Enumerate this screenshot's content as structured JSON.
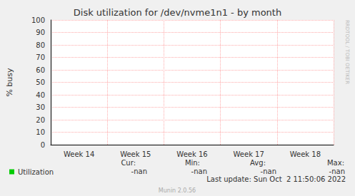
{
  "chart_data": {
    "type": "line",
    "title": "Disk utilization for /dev/nvme1n1 - by month",
    "y_label": "% busy",
    "categories": [
      "Week 14",
      "Week 15",
      "Week 16",
      "Week 17",
      "Week 18"
    ],
    "series": [
      {
        "name": "Utilization",
        "color": "#00cc00",
        "values": [
          null,
          null,
          null,
          null,
          null
        ]
      }
    ],
    "ylim": [
      0,
      100
    ],
    "yticks": [
      0,
      10,
      20,
      30,
      40,
      50,
      60,
      70,
      80,
      90,
      100
    ],
    "grid": true,
    "legend": "bottom-left",
    "annotations": {
      "stats_headers": [
        "Cur:",
        "Min:",
        "Avg:",
        "Max:"
      ],
      "stats_values": [
        "-nan",
        "-nan",
        "-nan",
        "-nan"
      ],
      "last_update": "Last update: Sun Oct  2 11:50:06 2022",
      "footer": "Munin 2.0.56",
      "side_text": "RRDTOOL / TOBI OETIKER"
    }
  }
}
